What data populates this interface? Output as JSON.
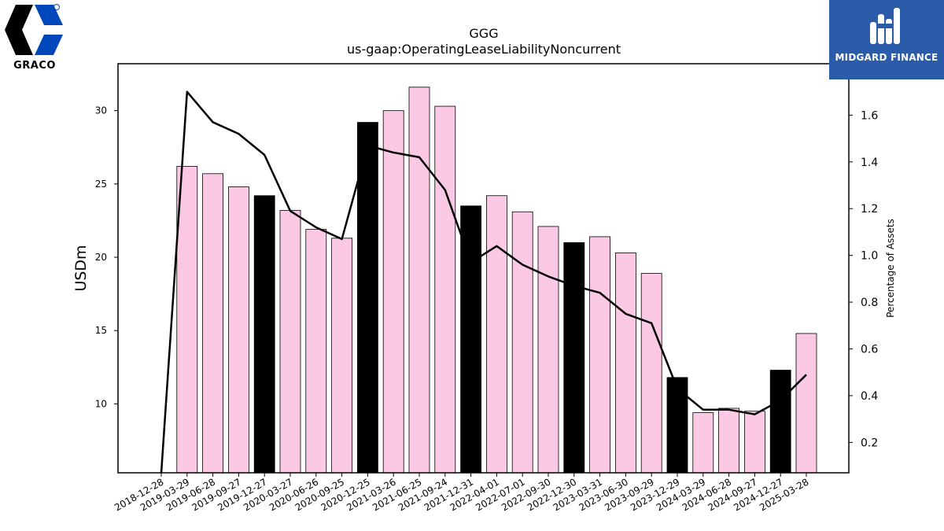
{
  "chart_data": {
    "type": "bar",
    "title": "GGG",
    "subtitle": "us-gaap:OperatingLeaseLiabilityNoncurrent",
    "ylabel": "USDm",
    "y2label": "Percentage of Assets",
    "ylim": [
      5.3,
      33.2
    ],
    "y2lim": [
      0.07,
      1.82
    ],
    "yticks": [
      10,
      15,
      20,
      25,
      30
    ],
    "y2ticks": [
      0.2,
      0.4,
      0.6,
      0.8,
      1.0,
      1.2,
      1.4,
      1.6
    ],
    "y2tick_labels": [
      "0.2",
      "0.4",
      "0.6",
      "0.8",
      "1.0",
      "1.2",
      "1.4",
      "1.6"
    ],
    "categories": [
      "2018-12-28",
      "2019-03-29",
      "2019-06-28",
      "2019-09-27",
      "2019-12-27",
      "2020-03-27",
      "2020-06-26",
      "2020-09-25",
      "2020-12-25",
      "2021-03-26",
      "2021-06-25",
      "2021-09-24",
      "2021-12-31",
      "2022-04-01",
      "2022-07-01",
      "2022-09-30",
      "2022-12-30",
      "2023-03-31",
      "2023-06-30",
      "2023-09-29",
      "2023-12-29",
      "2024-03-29",
      "2024-06-28",
      "2024-09-27",
      "2024-12-27",
      "2025-03-28"
    ],
    "values": [
      null,
      26.2,
      25.7,
      24.8,
      24.2,
      23.2,
      21.9,
      21.3,
      29.2,
      30.0,
      31.6,
      30.3,
      23.5,
      24.2,
      23.1,
      22.1,
      21.0,
      21.4,
      20.3,
      18.9,
      11.8,
      9.4,
      9.7,
      9.5,
      12.3,
      14.8
    ],
    "bar_highlight": [
      false,
      false,
      false,
      false,
      true,
      false,
      false,
      false,
      true,
      false,
      false,
      false,
      true,
      false,
      false,
      false,
      true,
      false,
      false,
      false,
      true,
      false,
      false,
      false,
      true,
      false
    ],
    "line_values": [
      0.07,
      1.7,
      1.57,
      1.52,
      1.43,
      1.19,
      1.12,
      1.07,
      1.47,
      1.44,
      1.42,
      1.28,
      0.97,
      1.04,
      0.96,
      0.91,
      0.87,
      0.84,
      0.75,
      0.71,
      0.43,
      0.34,
      0.34,
      0.32,
      0.38,
      0.49
    ],
    "colors": {
      "bar": "#fcc9e5",
      "bar_highlight": "#000000",
      "line": "#000000"
    },
    "grid": false,
    "legend": "none"
  },
  "logos": {
    "left_brand": "GRACO",
    "right_brand": "MIDGARD FINANCE",
    "left_brand_color": "#0047bb",
    "right_brand_bg": "#2a5caa"
  }
}
